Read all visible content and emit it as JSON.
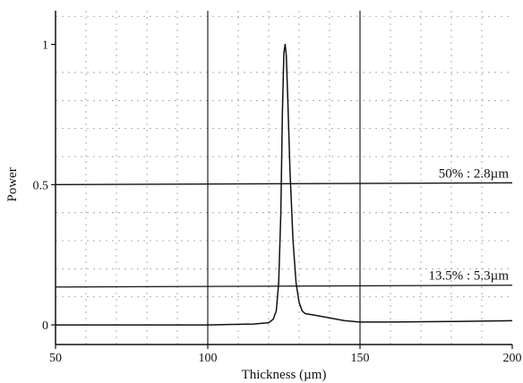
{
  "chart_data": {
    "type": "line",
    "title": "",
    "xlabel": "Thickness (µm)",
    "ylabel": "Power",
    "xlim": [
      50,
      200
    ],
    "ylim": [
      -0.07,
      1.12
    ],
    "x_ticks": [
      50,
      100,
      150,
      200
    ],
    "y_ticks": [
      0,
      0.5,
      1
    ],
    "x_tick_labels": [
      "50",
      "100",
      "150",
      "200"
    ],
    "y_tick_labels": [
      "0",
      "0.5",
      "1"
    ],
    "grid": true,
    "series": [
      {
        "x": [
          50,
          100,
          115,
          120,
          121.5,
          122.5,
          123.3,
          124,
          124.5,
          125,
          125.4,
          125.8,
          126.3,
          127,
          128,
          129,
          130,
          131,
          132,
          135,
          140,
          145,
          150,
          160,
          180,
          200
        ],
        "y": [
          0,
          0,
          0.003,
          0.008,
          0.02,
          0.05,
          0.15,
          0.4,
          0.75,
          0.97,
          1.0,
          0.96,
          0.8,
          0.55,
          0.3,
          0.15,
          0.08,
          0.05,
          0.04,
          0.035,
          0.025,
          0.015,
          0.01,
          0.01,
          0.012,
          0.015
        ]
      }
    ],
    "reference_lines": [
      {
        "y": 0.5,
        "label": "50% : 2.8µm"
      },
      {
        "y": 0.135,
        "label": "13.5% : 5.3µm"
      }
    ]
  }
}
